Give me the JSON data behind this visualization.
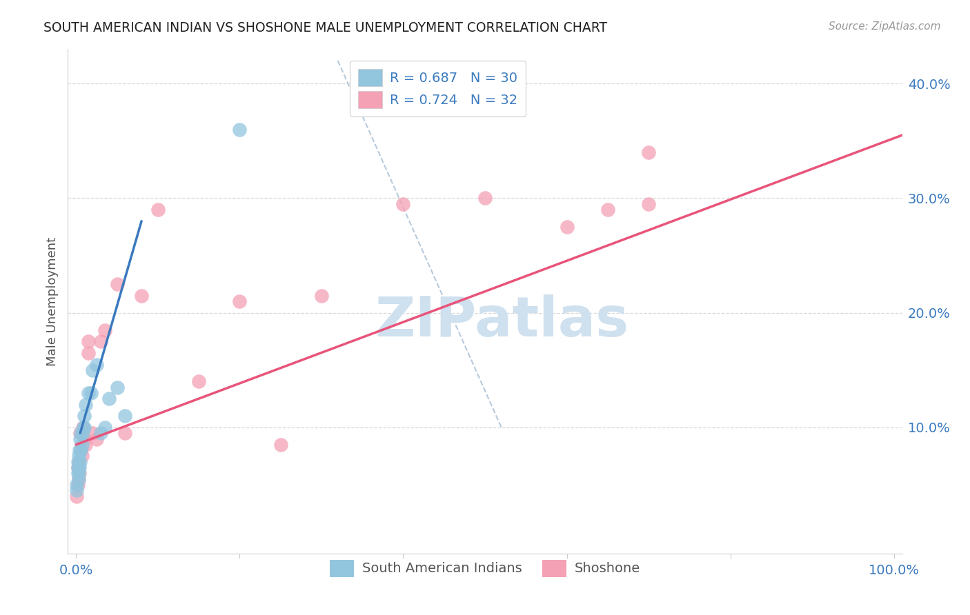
{
  "title": "SOUTH AMERICAN INDIAN VS SHOSHONE MALE UNEMPLOYMENT CORRELATION CHART",
  "source": "Source: ZipAtlas.com",
  "ylabel": "Male Unemployment",
  "xlim": [
    -0.01,
    1.01
  ],
  "ylim": [
    -0.01,
    0.43
  ],
  "yticks": [
    0.1,
    0.2,
    0.3,
    0.4
  ],
  "xticks": [
    0.0,
    0.2,
    0.4,
    0.6,
    0.8,
    1.0
  ],
  "blue_color": "#92c5de",
  "pink_color": "#f4a0b5",
  "blue_line_color": "#3a7abf",
  "pink_line_color": "#e8547a",
  "dash_line_color": "#b0c4d8",
  "watermark_text": "ZIPatlas",
  "watermark_color": "#cfe0ef",
  "south_american_x": [
    0.001,
    0.001,
    0.002,
    0.002,
    0.002,
    0.003,
    0.003,
    0.003,
    0.004,
    0.004,
    0.005,
    0.005,
    0.006,
    0.006,
    0.007,
    0.008,
    0.009,
    0.01,
    0.01,
    0.012,
    0.015,
    0.018,
    0.02,
    0.025,
    0.03,
    0.035,
    0.04,
    0.05,
    0.06,
    0.2
  ],
  "south_american_y": [
    0.045,
    0.05,
    0.06,
    0.065,
    0.07,
    0.055,
    0.06,
    0.075,
    0.065,
    0.08,
    0.07,
    0.09,
    0.08,
    0.095,
    0.085,
    0.095,
    0.1,
    0.1,
    0.11,
    0.12,
    0.13,
    0.13,
    0.15,
    0.155,
    0.095,
    0.1,
    0.125,
    0.135,
    0.11,
    0.36
  ],
  "shoshone_x": [
    0.001,
    0.002,
    0.002,
    0.003,
    0.003,
    0.004,
    0.005,
    0.006,
    0.007,
    0.008,
    0.01,
    0.012,
    0.015,
    0.015,
    0.02,
    0.025,
    0.03,
    0.035,
    0.05,
    0.06,
    0.08,
    0.1,
    0.15,
    0.2,
    0.25,
    0.3,
    0.4,
    0.5,
    0.6,
    0.65,
    0.7,
    0.7
  ],
  "shoshone_y": [
    0.04,
    0.05,
    0.065,
    0.055,
    0.07,
    0.06,
    0.095,
    0.08,
    0.075,
    0.1,
    0.09,
    0.085,
    0.165,
    0.175,
    0.095,
    0.09,
    0.175,
    0.185,
    0.225,
    0.095,
    0.215,
    0.29,
    0.14,
    0.21,
    0.085,
    0.215,
    0.295,
    0.3,
    0.275,
    0.29,
    0.34,
    0.295
  ],
  "blue_line_x": [
    0.005,
    0.08
  ],
  "blue_line_y": [
    0.095,
    0.28
  ],
  "pink_line_x": [
    0.0,
    1.01
  ],
  "pink_line_y": [
    0.085,
    0.355
  ],
  "dash_line_x": [
    0.32,
    0.52
  ],
  "dash_line_y": [
    0.42,
    0.1
  ],
  "legend_r1": "R = 0.687",
  "legend_n1": "N = 30",
  "legend_r2": "R = 0.724",
  "legend_n2": "N = 32",
  "legend_text_color": "#3a7abf",
  "grid_color": "#d8d8d8",
  "spine_color": "#cccccc",
  "tick_color": "#3a7abf",
  "ylabel_color": "#555555",
  "title_color": "#222222"
}
